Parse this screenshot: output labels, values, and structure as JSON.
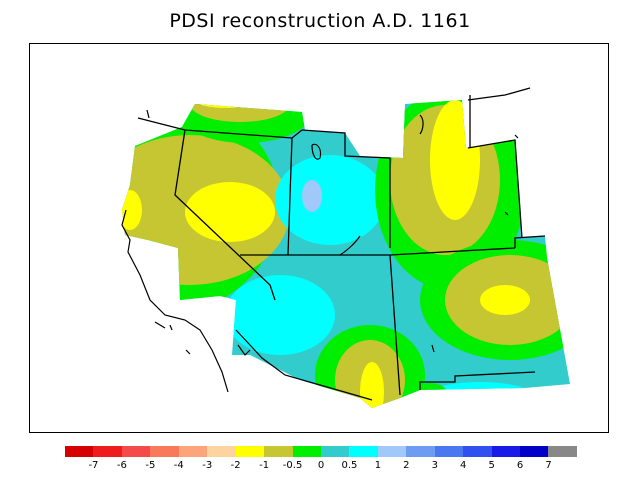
{
  "title": "PDSI reconstruction A.D. 1161",
  "legend": {
    "colors": [
      "#d50000",
      "#ee1c1c",
      "#f54a4a",
      "#f97a5a",
      "#fca57a",
      "#fdd3a0",
      "#ffff00",
      "#c6c633",
      "#00ee00",
      "#33cccc",
      "#00ffff",
      "#a0c8f8",
      "#6e9cf2",
      "#4a78f0",
      "#3050f0",
      "#1a1ae8",
      "#0000c8",
      "#888888"
    ],
    "tick_labels": [
      "-7",
      "-6",
      "-5",
      "-4",
      "-3",
      "-2",
      "-1",
      "-0.5",
      "0",
      "0.5",
      "1",
      "2",
      "3",
      "4",
      "5",
      "6",
      "7"
    ]
  }
}
